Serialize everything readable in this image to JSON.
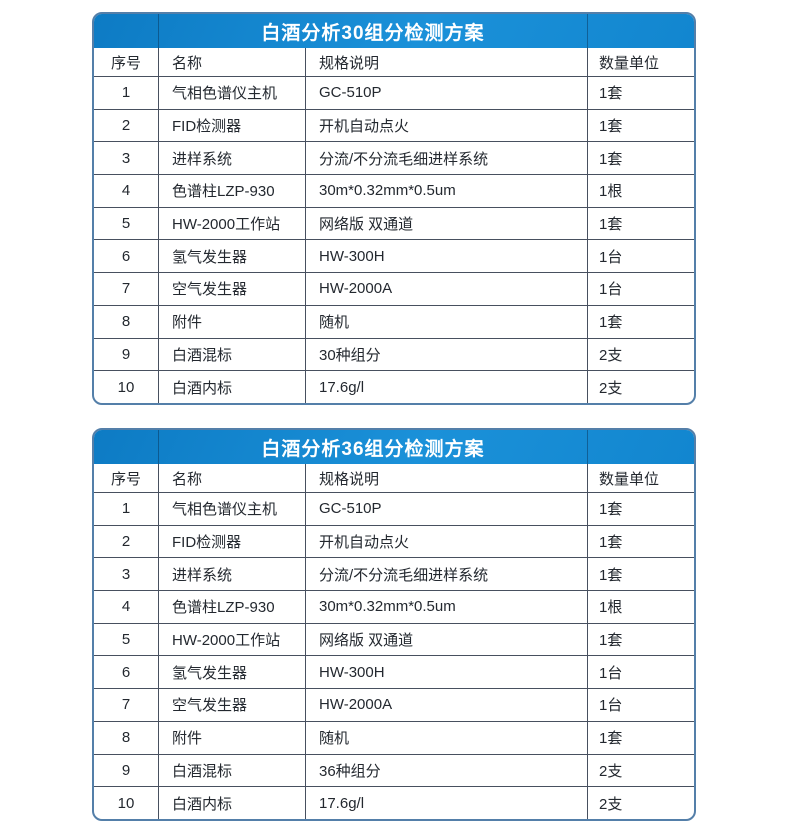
{
  "colors": {
    "header_blue_start": "#0d7bc4",
    "header_blue_mid": "#1b91d9",
    "header_blue_end": "#1286cf",
    "outer_border": "#547fa9",
    "grid_line": "#47505f",
    "title_text": "#ffffff",
    "body_text": "#23282f",
    "row_background": "#ffffff"
  },
  "columns": [
    "序号",
    "名称",
    "规格说明",
    "数量单位"
  ],
  "tables": [
    {
      "title": "白酒分析30组分检测方案",
      "rows": [
        [
          "1",
          "气相色谱仪主机",
          "GC-510P",
          "1套"
        ],
        [
          "2",
          "FID检测器",
          "开机自动点火",
          "1套"
        ],
        [
          "3",
          "进样系统",
          "分流/不分流毛细进样系统",
          "1套"
        ],
        [
          "4",
          "色谱柱LZP-930",
          "30m*0.32mm*0.5um",
          "1根"
        ],
        [
          "5",
          "HW-2000工作站",
          "网络版 双通道",
          "1套"
        ],
        [
          "6",
          "氢气发生器",
          "HW-300H",
          "1台"
        ],
        [
          "7",
          "空气发生器",
          "HW-2000A",
          "1台"
        ],
        [
          "8",
          "附件",
          "随机",
          "1套"
        ],
        [
          "9",
          "白酒混标",
          "30种组分",
          "2支"
        ],
        [
          "10",
          "白酒内标",
          "17.6g/l",
          "2支"
        ]
      ]
    },
    {
      "title": "白酒分析36组分检测方案",
      "rows": [
        [
          "1",
          "气相色谱仪主机",
          "GC-510P",
          "1套"
        ],
        [
          "2",
          "FID检测器",
          "开机自动点火",
          "1套"
        ],
        [
          "3",
          "进样系统",
          "分流/不分流毛细进样系统",
          "1套"
        ],
        [
          "4",
          "色谱柱LZP-930",
          "30m*0.32mm*0.5um",
          "1根"
        ],
        [
          "5",
          "HW-2000工作站",
          "网络版 双通道",
          "1套"
        ],
        [
          "6",
          "氢气发生器",
          "HW-300H",
          "1台"
        ],
        [
          "7",
          "空气发生器",
          "HW-2000A",
          "1台"
        ],
        [
          "8",
          "附件",
          "随机",
          "1套"
        ],
        [
          "9",
          "白酒混标",
          "36种组分",
          "2支"
        ],
        [
          "10",
          "白酒内标",
          "17.6g/l",
          "2支"
        ]
      ]
    }
  ]
}
